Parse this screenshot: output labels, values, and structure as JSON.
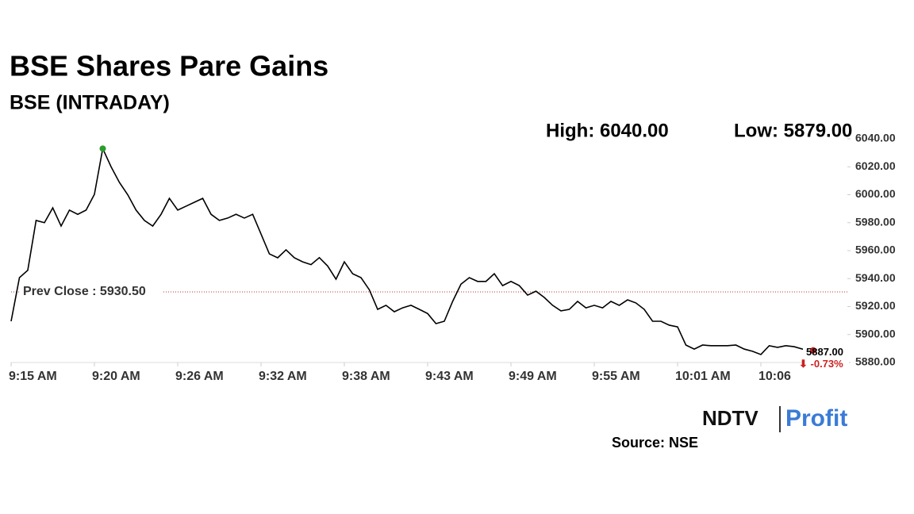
{
  "chart_data": {
    "type": "line",
    "title": "BSE Shares Pare Gains",
    "subtitle": "BSE (INTRADAY)",
    "high_text": "High: 6040.00",
    "low_text": "Low: 5879.00",
    "categories": [
      "9:15 AM",
      null,
      null,
      null,
      null,
      null,
      null,
      null,
      null,
      null,
      "9:20 AM",
      null,
      null,
      null,
      null,
      null,
      null,
      null,
      null,
      null,
      "9:26 AM",
      null,
      null,
      null,
      null,
      null,
      null,
      null,
      null,
      null,
      "9:32 AM",
      null,
      null,
      null,
      null,
      null,
      null,
      null,
      null,
      null,
      "9:38 AM",
      null,
      null,
      null,
      null,
      null,
      null,
      null,
      null,
      null,
      "9:43 AM",
      null,
      null,
      null,
      null,
      null,
      null,
      null,
      null,
      null,
      "9:49 AM",
      null,
      null,
      null,
      null,
      null,
      null,
      null,
      null,
      null,
      "9:55 AM",
      null,
      null,
      null,
      null,
      null,
      null,
      null,
      null,
      null,
      "10:01 AM",
      null,
      null,
      null,
      null,
      null,
      null,
      null,
      null,
      null,
      "10:06",
      null,
      null,
      null,
      null,
      null,
      null,
      null,
      null,
      null,
      null
    ],
    "values": [
      5909.5,
      5940.7,
      5946,
      5981.6,
      5980,
      5990.6,
      5977.6,
      5989,
      5986,
      5989,
      6000.3,
      6033,
      6020,
      6008.8,
      6000,
      5989,
      5981.6,
      5977.6,
      5986,
      5997.4,
      5989,
      5991.8,
      5994.6,
      5997.4,
      5986,
      5981.6,
      5983.3,
      5986,
      5983.3,
      5986,
      5971.9,
      5957.7,
      5954.9,
      5960.6,
      5954.9,
      5952,
      5950,
      5955,
      5949,
      5939.6,
      5952,
      5943.5,
      5940.7,
      5932,
      5918,
      5920.9,
      5916.3,
      5919.1,
      5920.9,
      5918,
      5915,
      5907.8,
      5909.5,
      5923.7,
      5936,
      5940.7,
      5938,
      5938,
      5943.5,
      5935,
      5938,
      5935,
      5928.2,
      5931,
      5926.5,
      5920.9,
      5916.9,
      5918,
      5923.7,
      5919.1,
      5920.9,
      5919.1,
      5923.7,
      5920.9,
      5924.8,
      5922.6,
      5918,
      5909.5,
      5909.5,
      5906.7,
      5905.5,
      5892.5,
      5889.6,
      5892.5,
      5892,
      5892,
      5892,
      5892.5,
      5889.6,
      5888,
      5885.7,
      5892,
      5890.8,
      5892,
      5891.3,
      5889.6,
      5886.8,
      5886.8,
      5886.2,
      5885.7,
      5887
    ],
    "color": "#000000",
    "ylim": [
      5880,
      6040
    ],
    "yticks": [
      {
        "value": 5880,
        "label": "5880.00"
      },
      {
        "value": 5900,
        "label": "5900.00"
      },
      {
        "value": 5920,
        "label": "5920.00"
      },
      {
        "value": 5940,
        "label": "5940.00"
      },
      {
        "value": 5960,
        "label": "5960.00"
      },
      {
        "value": 5980,
        "label": "5980.00"
      },
      {
        "value": 6000,
        "label": "6000.00"
      },
      {
        "value": 6020,
        "label": "6020.00"
      },
      {
        "value": 6040,
        "label": "6040.00"
      }
    ],
    "prev_close": {
      "value": 5930.5,
      "label": "Prev Close : 5930.50"
    },
    "last": {
      "value": 5887,
      "label": "5887.00"
    },
    "change": "⬇ -0.73%",
    "source": "Source: NSE",
    "logo": [
      "NDTV",
      "Profit"
    ]
  }
}
